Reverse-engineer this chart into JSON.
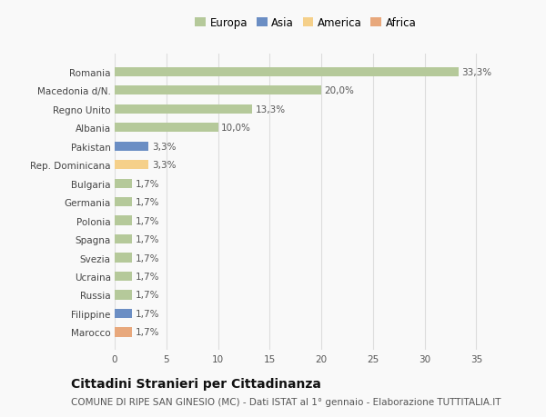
{
  "categories": [
    "Marocco",
    "Filippine",
    "Russia",
    "Ucraina",
    "Svezia",
    "Spagna",
    "Polonia",
    "Germania",
    "Bulgaria",
    "Rep. Dominicana",
    "Pakistan",
    "Albania",
    "Regno Unito",
    "Macedonia d/N.",
    "Romania"
  ],
  "values": [
    1.7,
    1.7,
    1.7,
    1.7,
    1.7,
    1.7,
    1.7,
    1.7,
    1.7,
    3.3,
    3.3,
    10.0,
    13.3,
    20.0,
    33.3
  ],
  "labels": [
    "1,7%",
    "1,7%",
    "1,7%",
    "1,7%",
    "1,7%",
    "1,7%",
    "1,7%",
    "1,7%",
    "1,7%",
    "3,3%",
    "3,3%",
    "10,0%",
    "13,3%",
    "20,0%",
    "33,3%"
  ],
  "colors": [
    "#e8a87c",
    "#6b8ec4",
    "#b5c99a",
    "#b5c99a",
    "#b5c99a",
    "#b5c99a",
    "#b5c99a",
    "#b5c99a",
    "#b5c99a",
    "#f5d08a",
    "#6b8ec4",
    "#b5c99a",
    "#b5c99a",
    "#b5c99a",
    "#b5c99a"
  ],
  "legend_labels": [
    "Europa",
    "Asia",
    "America",
    "Africa"
  ],
  "legend_colors": [
    "#b5c99a",
    "#6b8ec4",
    "#f5d08a",
    "#e8a87c"
  ],
  "title": "Cittadini Stranieri per Cittadinanza",
  "subtitle": "COMUNE DI RIPE SAN GINESIO (MC) - Dati ISTAT al 1° gennaio - Elaborazione TUTTITALIA.IT",
  "xlim": [
    0,
    37
  ],
  "xticks": [
    0,
    5,
    10,
    15,
    20,
    25,
    30,
    35
  ],
  "background_color": "#f9f9f9",
  "grid_color": "#dddddd",
  "bar_height": 0.5,
  "label_fontsize": 7.5,
  "tick_fontsize": 7.5,
  "title_fontsize": 10,
  "subtitle_fontsize": 7.5
}
